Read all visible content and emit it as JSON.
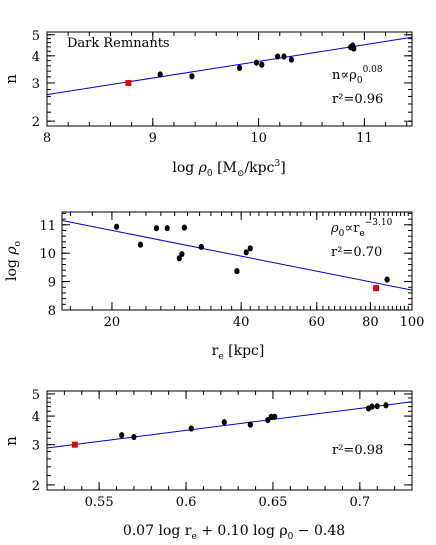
{
  "chart_data": [
    {
      "type": "scatter",
      "xlabel": "log ρ₀ [M⊙/kpc³]",
      "xlabel_parts": {
        "a": "log ",
        "rho": "ρ",
        "sub0": "0",
        "b": " [M",
        "sun": "⊙",
        "c": "/kpc",
        "cube": "3",
        "d": "]"
      },
      "ylabel": "n",
      "x_scale": "linear",
      "y_scale": "log",
      "xlim": [
        8,
        11.45
      ],
      "ylim": [
        1.9,
        5.15
      ],
      "x_ticks": [
        "8",
        "9",
        "10",
        "11"
      ],
      "x_tick_values": [
        8,
        9,
        10,
        11
      ],
      "y_ticks": [
        "2",
        "3",
        "4",
        "5"
      ],
      "y_tick_values": [
        2,
        3,
        4,
        5
      ],
      "panel_label": "Dark Remnants",
      "annotations": [
        {
          "kind": "relation",
          "parts": [
            "n∝ρ",
            "0",
            "0.08"
          ]
        },
        {
          "kind": "r2",
          "text": "r²=0.96"
        }
      ],
      "fit_line": {
        "color": "#0000cc",
        "points": [
          [
            8,
            2.65
          ],
          [
            11.45,
            4.87
          ]
        ]
      },
      "points": [
        {
          "x": 9.07,
          "y": 3.28
        },
        {
          "x": 9.37,
          "y": 3.22
        },
        {
          "x": 9.82,
          "y": 3.52
        },
        {
          "x": 9.98,
          "y": 3.72
        },
        {
          "x": 10.03,
          "y": 3.64
        },
        {
          "x": 10.18,
          "y": 3.97
        },
        {
          "x": 10.24,
          "y": 3.97
        },
        {
          "x": 10.31,
          "y": 3.84
        },
        {
          "x": 10.87,
          "y": 4.38
        },
        {
          "x": 10.89,
          "y": 4.46
        },
        {
          "x": 10.9,
          "y": 4.32
        }
      ],
      "highlight": {
        "x": 8.77,
        "y": 3.0,
        "color": "#dd0000"
      }
    },
    {
      "type": "scatter",
      "xlabel": "rₑ [kpc]",
      "xlabel_parts": {
        "a": "r",
        "sub": "e",
        "b": " [kpc]"
      },
      "ylabel": "log ρ₀",
      "ylabel_parts": {
        "a": "log ",
        "rho": "ρ",
        "sub": "o"
      },
      "x_scale": "log",
      "y_scale": "linear",
      "xlim": [
        15.3,
        100
      ],
      "ylim": [
        8,
        11.45
      ],
      "x_ticks": [
        "20",
        "40",
        "60",
        "80",
        "100"
      ],
      "x_tick_values": [
        20,
        40,
        60,
        80,
        100
      ],
      "y_ticks": [
        "8",
        "9",
        "10",
        "11"
      ],
      "y_tick_values": [
        8,
        9,
        10,
        11
      ],
      "annotations": [
        {
          "kind": "relation",
          "parts": [
            "ρ",
            "0",
            "∝r",
            "e",
            "−3.10"
          ]
        },
        {
          "kind": "r2",
          "text": "r²=0.70"
        }
      ],
      "fit_line": {
        "color": "#0000cc",
        "points": [
          [
            15.3,
            11.15
          ],
          [
            100,
            8.7
          ]
        ]
      },
      "points": [
        {
          "x": 20.5,
          "y": 10.93
        },
        {
          "x": 23.3,
          "y": 10.3
        },
        {
          "x": 25.4,
          "y": 10.88
        },
        {
          "x": 26.9,
          "y": 10.88
        },
        {
          "x": 28.7,
          "y": 9.82
        },
        {
          "x": 29.1,
          "y": 9.97
        },
        {
          "x": 29.5,
          "y": 10.9
        },
        {
          "x": 32.3,
          "y": 10.22
        },
        {
          "x": 39.1,
          "y": 9.37
        },
        {
          "x": 41.1,
          "y": 10.03
        },
        {
          "x": 42.0,
          "y": 10.17
        },
        {
          "x": 87.5,
          "y": 9.07
        }
      ],
      "highlight": {
        "x": 82.5,
        "y": 8.77,
        "color": "#dd0000"
      }
    },
    {
      "type": "scatter",
      "xlabel": "0.07 log rₑ + 0.10 log ρ₀ − 0.48",
      "xlabel_parts": {
        "a": "0.07 log r",
        "sub_e": "e",
        "b": " + 0.10 log ρ",
        "sub_0": "0",
        "c": " − 0.48"
      },
      "ylabel": "n",
      "x_scale": "linear",
      "y_scale": "log",
      "xlim": [
        0.52,
        0.73
      ],
      "ylim": [
        1.9,
        5.15
      ],
      "x_ticks": [
        "0.55",
        "0.6",
        "0.65",
        "0.7"
      ],
      "x_tick_values": [
        0.55,
        0.6,
        0.65,
        0.7
      ],
      "y_ticks": [
        "2",
        "3",
        "4",
        "5"
      ],
      "y_tick_values": [
        2,
        3,
        4,
        5
      ],
      "annotations": [
        {
          "kind": "r2",
          "text": "r²=0.98"
        }
      ],
      "fit_line": {
        "color": "#0000cc",
        "points": [
          [
            0.52,
            2.9
          ],
          [
            0.73,
            4.62
          ]
        ]
      },
      "points": [
        {
          "x": 0.563,
          "y": 3.3
        },
        {
          "x": 0.57,
          "y": 3.24
        },
        {
          "x": 0.603,
          "y": 3.53
        },
        {
          "x": 0.622,
          "y": 3.76
        },
        {
          "x": 0.637,
          "y": 3.67
        },
        {
          "x": 0.647,
          "y": 3.84
        },
        {
          "x": 0.649,
          "y": 3.97
        },
        {
          "x": 0.651,
          "y": 3.97
        },
        {
          "x": 0.705,
          "y": 4.32
        },
        {
          "x": 0.707,
          "y": 4.4
        },
        {
          "x": 0.71,
          "y": 4.42
        },
        {
          "x": 0.715,
          "y": 4.46
        }
      ],
      "highlight": {
        "x": 0.536,
        "y": 3.0,
        "color": "#dd0000"
      }
    }
  ]
}
